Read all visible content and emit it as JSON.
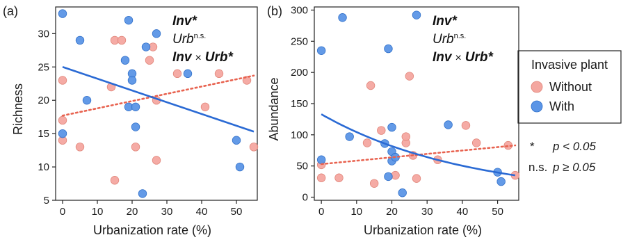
{
  "chart_data": [
    {
      "panel_label": "(a)",
      "type": "scatter",
      "xlabel": "Urbanization rate (%)",
      "ylabel": "Richness",
      "xlim": [
        -2,
        56
      ],
      "ylim": [
        5,
        34
      ],
      "xticks": [
        "0",
        "10",
        "20",
        "30",
        "40",
        "50"
      ],
      "yticks": [
        "5",
        "10",
        "15",
        "20",
        "25",
        "30"
      ],
      "annotations": [
        {
          "main": "Inv",
          "suffix": "*",
          "style": "bold"
        },
        {
          "main": "Urb",
          "suffix": "n.s.",
          "style": "sup"
        },
        {
          "main": "Inv",
          "mid": "×",
          "main2": "Urb",
          "suffix": "*",
          "style": "interaction"
        }
      ],
      "series": [
        {
          "name": "Without",
          "color": "#f4a7a0",
          "edge": "#e08478",
          "x": [
            0,
            0,
            0,
            5,
            14,
            15,
            15,
            17,
            21,
            25,
            26,
            27,
            27,
            33,
            41,
            45,
            53,
            55
          ],
          "y": [
            23,
            17,
            14,
            13,
            22,
            29,
            8,
            29,
            13,
            26,
            28,
            11,
            20,
            24,
            19,
            24,
            23,
            13
          ],
          "trend": {
            "x": [
              0,
              55
            ],
            "y": [
              17.7,
              23.7
            ],
            "style": "dotted",
            "color": "#e8624f"
          }
        },
        {
          "name": "With",
          "color": "#5b95e6",
          "edge": "#2f6fc9",
          "x": [
            0,
            0,
            5,
            7,
            18,
            19,
            19,
            20,
            20,
            21,
            21,
            23,
            24,
            27,
            36,
            50,
            51
          ],
          "y": [
            33,
            15,
            29,
            20,
            26,
            19,
            32,
            24,
            23,
            16,
            19,
            6,
            28,
            30,
            24,
            14,
            10
          ],
          "trend": {
            "x": [
              0,
              55
            ],
            "y": [
              25,
              15.3
            ],
            "style": "solid",
            "color": "#2a6ad4"
          }
        }
      ]
    },
    {
      "panel_label": "(b)",
      "type": "scatter",
      "xlabel": "Urbanization rate (%)",
      "ylabel": "Abundance",
      "xlim": [
        -2,
        56
      ],
      "ylim": [
        -5,
        305
      ],
      "xticks": [
        "0",
        "10",
        "20",
        "30",
        "40",
        "50"
      ],
      "yticks": [
        "0",
        "50",
        "100",
        "150",
        "200",
        "250",
        "300"
      ],
      "annotations": [
        {
          "main": "Inv",
          "suffix": "*",
          "style": "bold"
        },
        {
          "main": "Urb",
          "suffix": "n.s.",
          "style": "sup"
        },
        {
          "main": "Inv",
          "mid": "×",
          "main2": "Urb",
          "suffix": "*",
          "style": "interaction"
        }
      ],
      "series": [
        {
          "name": "Without",
          "color": "#f4a7a0",
          "edge": "#e08478",
          "x": [
            0,
            0,
            5,
            13,
            14,
            15,
            17,
            21,
            24,
            24,
            25,
            26,
            27,
            33,
            41,
            44,
            53,
            55
          ],
          "y": [
            52,
            31,
            31,
            87,
            179,
            22,
            107,
            35,
            87,
            97,
            194,
            67,
            30,
            60,
            115,
            87,
            83,
            35
          ],
          "trend": {
            "x": [
              0,
              55
            ],
            "y": [
              53,
              83
            ],
            "style": "dotted",
            "color": "#e8624f"
          }
        },
        {
          "name": "With",
          "color": "#5b95e6",
          "edge": "#2f6fc9",
          "x": [
            0,
            0,
            6,
            8,
            18,
            19,
            19,
            20,
            20,
            20,
            21,
            23,
            27,
            36,
            50,
            51
          ],
          "y": [
            235,
            60,
            288,
            97,
            86,
            33,
            238,
            73,
            112,
            58,
            64,
            7,
            292,
            116,
            40,
            25
          ],
          "trend": {
            "curve": "exp",
            "x": [
              0,
              55
            ],
            "y": [
              133,
              35
            ],
            "style": "solid",
            "color": "#2a6ad4"
          }
        }
      ]
    }
  ],
  "legend": {
    "title": "Invasive plant",
    "items": [
      {
        "label": "Without",
        "color": "#f4a7a0",
        "edge": "#e08478"
      },
      {
        "label": "With",
        "color": "#5b95e6",
        "edge": "#2f6fc9"
      }
    ]
  },
  "significance": [
    {
      "symbol": "*",
      "text": "p < 0.05"
    },
    {
      "symbol": "n.s.",
      "text": "p ≥ 0.05"
    }
  ]
}
